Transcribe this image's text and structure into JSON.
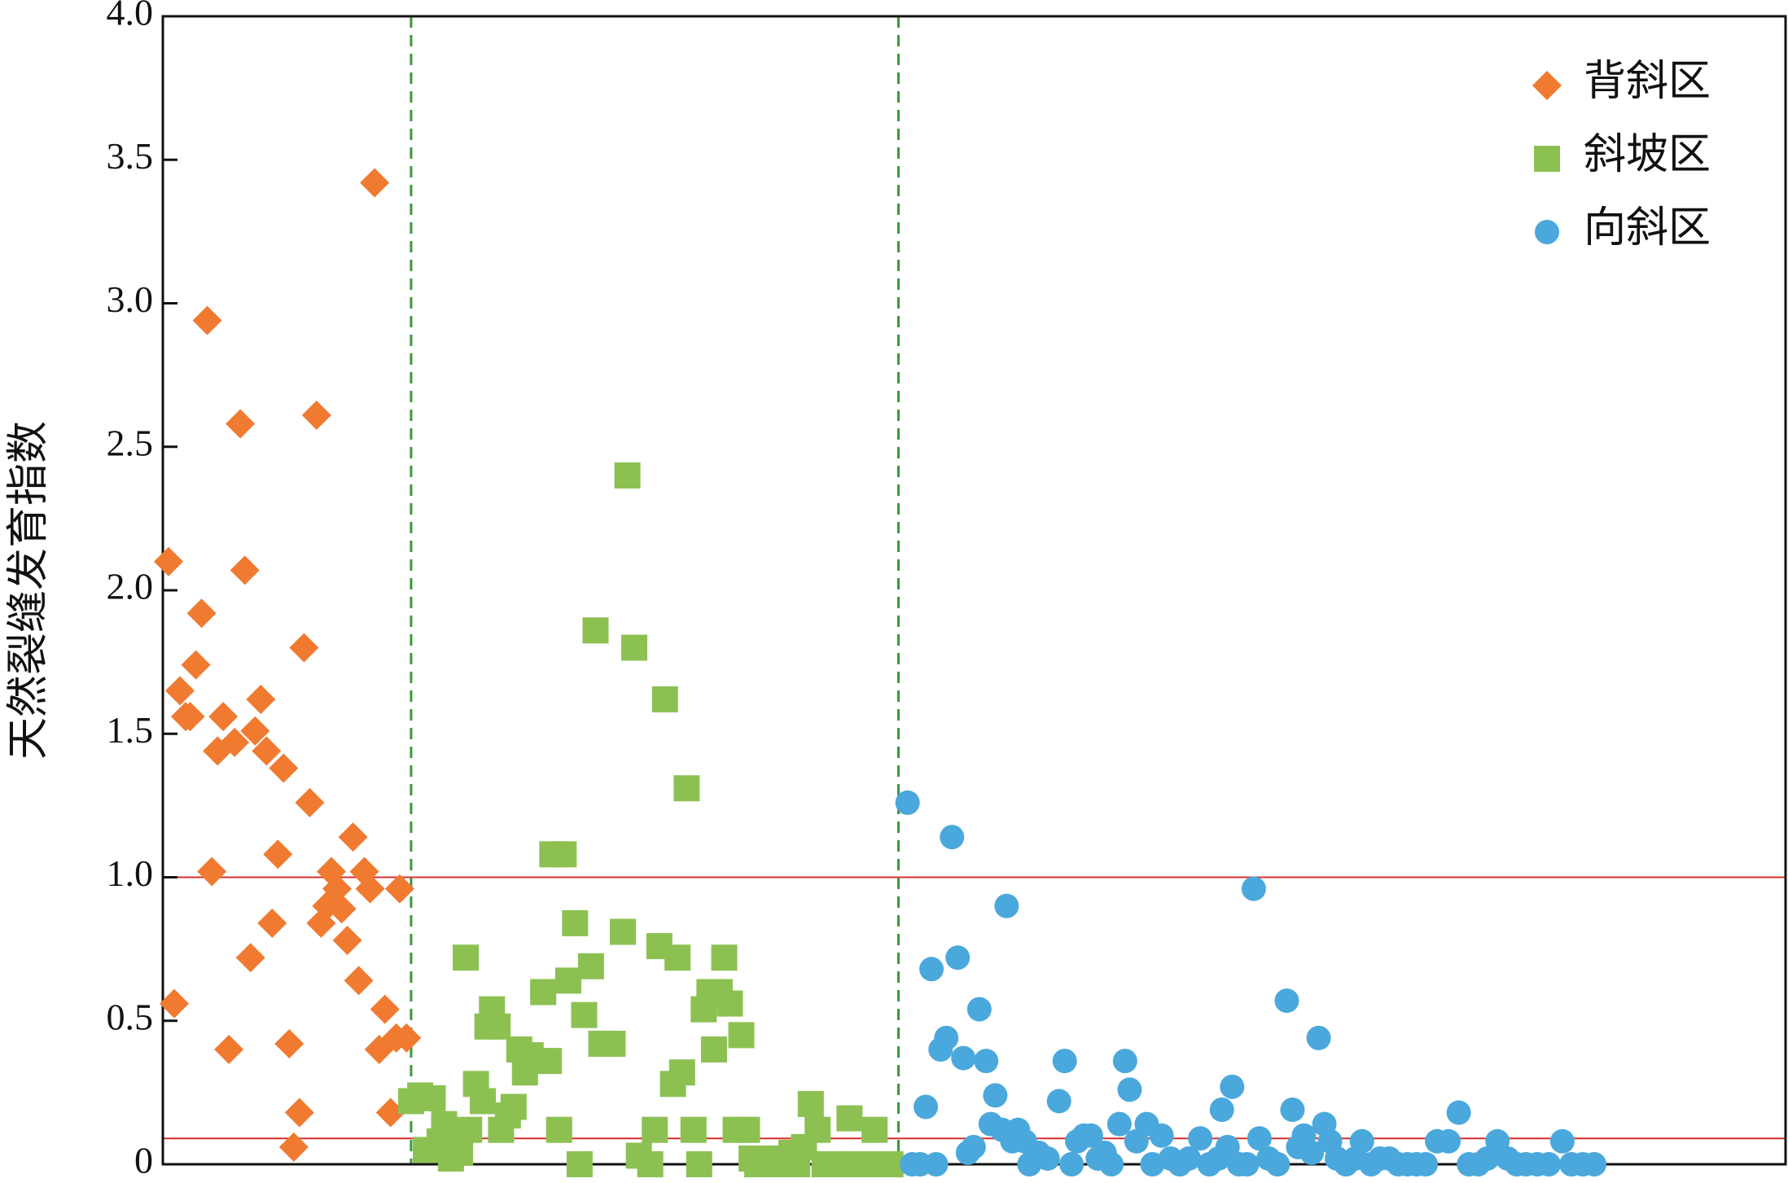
{
  "chart_data": {
    "type": "scatter",
    "y_label": "天然裂缝发育指数",
    "xlim": [
      0,
      1425
    ],
    "ylim": [
      0,
      4
    ],
    "yticks": [
      0,
      0.5,
      {
        "value": 1,
        "label": "1.0"
      },
      1.5,
      {
        "value": 2,
        "label": "2.0"
      },
      2.5,
      {
        "value": 3,
        "label": "3.0"
      },
      3.5,
      {
        "value": 4,
        "label": "4.0"
      }
    ],
    "legend": "upper right",
    "hlines": [
      {
        "value": 1.0,
        "color": "#d9302c"
      },
      {
        "value": 0.09,
        "color": "#d9302c"
      }
    ],
    "vlines": [
      {
        "value": 218,
        "color": "#3a9a3a"
      },
      {
        "value": 646,
        "color": "#3a9a3a"
      }
    ],
    "series": [
      {
        "name": "背斜区",
        "color": "#f07a30",
        "marker": "diamond",
        "x": [
          5,
          10,
          15,
          20,
          24,
          29,
          34,
          39,
          43,
          48,
          53,
          58,
          63,
          68,
          72,
          77,
          81,
          86,
          91,
          96,
          101,
          106,
          111,
          115,
          120,
          124,
          129,
          135,
          139,
          144,
          148,
          153,
          157,
          162,
          167,
          172,
          177,
          182,
          186,
          190,
          195,
          200,
          205,
          208,
          214
        ],
        "values": [
          2.1,
          0.56,
          1.65,
          1.56,
          1.56,
          1.74,
          1.92,
          2.94,
          1.02,
          1.44,
          1.56,
          0.4,
          1.47,
          2.58,
          2.07,
          0.72,
          1.51,
          1.62,
          1.44,
          0.84,
          1.08,
          1.38,
          0.42,
          0.06,
          0.18,
          1.8,
          1.26,
          2.61,
          0.84,
          0.9,
          1.02,
          0.96,
          0.89,
          0.78,
          1.14,
          0.64,
          1.02,
          0.96,
          3.42,
          0.4,
          0.54,
          0.18,
          0.44,
          0.96,
          0.44
        ]
      },
      {
        "name": "斜坡区",
        "color": "#8cc152",
        "marker": "square",
        "x": [
          218,
          226,
          231,
          237,
          243,
          247,
          253,
          257,
          261,
          266,
          269,
          275,
          281,
          285,
          289,
          294,
          297,
          303,
          308,
          313,
          318,
          323,
          329,
          334,
          339,
          342,
          348,
          352,
          356,
          362,
          366,
          370,
          376,
          380,
          385,
          395,
          404,
          408,
          414,
          418,
          428,
          432,
          436,
          441,
          448,
          452,
          456,
          460,
          466,
          471,
          475,
          480,
          484,
          489,
          493,
          498,
          503,
          508,
          513,
          517,
          522,
          529,
          537,
          545,
          552,
          557,
          563,
          569,
          575,
          581,
          589,
          597,
          603,
          609,
          617,
          625,
          632,
          639
        ],
        "values": [
          0.22,
          0.24,
          0.05,
          0.23,
          0.08,
          0.14,
          0.02,
          0.08,
          0.04,
          0.72,
          0.12,
          0.28,
          0.22,
          0.48,
          0.54,
          0.48,
          0.12,
          0.17,
          0.2,
          0.4,
          0.32,
          0.38,
          0.36,
          0.6,
          0.36,
          1.08,
          0.12,
          1.08,
          0.64,
          0.84,
          0,
          0.52,
          0.69,
          1.86,
          0.42,
          0.42,
          0.81,
          2.4,
          1.8,
          0.03,
          0,
          0.12,
          0.76,
          1.62,
          0.28,
          0.72,
          0.32,
          1.31,
          0.12,
          0,
          0.54,
          0.6,
          0.4,
          0.6,
          0.72,
          0.56,
          0.12,
          0.45,
          0.12,
          0.02,
          0,
          0,
          0.02,
          0,
          0.04,
          0,
          0.06,
          0.21,
          0.12,
          0,
          0,
          0,
          0.16,
          0,
          0,
          0.12,
          0,
          0
        ]
      },
      {
        "name": "向斜区",
        "color": "#4aa8dc",
        "marker": "circle",
        "x": [
          654,
          658,
          665,
          670,
          675,
          679,
          683,
          688,
          693,
          698,
          703,
          707,
          712,
          717,
          723,
          727,
          731,
          737,
          741,
          746,
          751,
          757,
          761,
          769,
          777,
          787,
          792,
          798,
          803,
          809,
          815,
          821,
          827,
          833,
          840,
          845,
          849,
          855,
          864,
          869,
          877,
          885,
          893,
          901,
          911,
          919,
          927,
          930,
          935,
          939,
          945,
          952,
          958,
          963,
          971,
          979,
          987,
          992,
          997,
          1002,
          1009,
          1015,
          1020,
          1025,
          1031,
          1039,
          1047,
          1053,
          1061,
          1069,
          1077,
          1085,
          1093,
          1101,
          1109,
          1119,
          1129,
          1138,
          1147,
          1155,
          1163,
          1172,
          1181,
          1189,
          1197,
          1207,
          1217,
          1229,
          1237,
          1247,
          1257
        ],
        "values": [
          1.26,
          0,
          0,
          0.2,
          0.68,
          0,
          0.4,
          0.44,
          1.14,
          0.72,
          0.37,
          0.04,
          0.06,
          0.54,
          0.36,
          0.14,
          0.24,
          0.12,
          0.9,
          0.08,
          0.12,
          0.08,
          0,
          0.04,
          0.02,
          0.22,
          0.36,
          0,
          0.08,
          0.1,
          0.1,
          0.02,
          0.04,
          0,
          0.14,
          0.36,
          0.26,
          0.08,
          0.14,
          0,
          0.1,
          0.02,
          0,
          0.02,
          0.09,
          0,
          0.02,
          0.19,
          0.06,
          0.27,
          0,
          0,
          0.96,
          0.09,
          0.02,
          0,
          0.57,
          0.19,
          0.06,
          0.1,
          0.04,
          0.44,
          0.14,
          0.08,
          0.02,
          0,
          0.02,
          0.08,
          0,
          0.02,
          0.02,
          0,
          0,
          0,
          0,
          0.08,
          0.08,
          0.18,
          0,
          0,
          0.02,
          0.08,
          0.02,
          0,
          0,
          0,
          0,
          0.08,
          0,
          0,
          0
        ]
      }
    ]
  }
}
